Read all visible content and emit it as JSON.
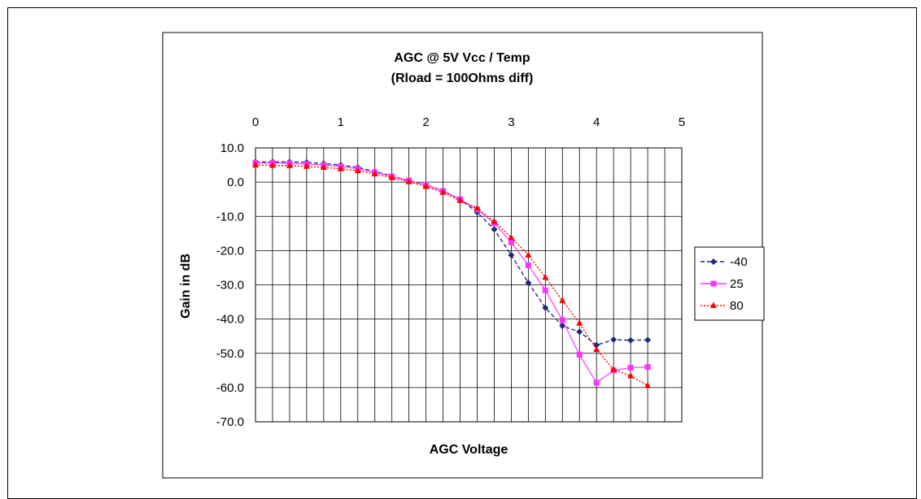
{
  "chart_data": {
    "type": "line",
    "title": "AGC @ 5V Vcc / Temp",
    "subtitle": "(Rload = 100Ohms diff)",
    "xlabel": "AGC Voltage",
    "ylabel": "Gain in dB",
    "xlim": [
      0,
      5
    ],
    "ylim": [
      -70,
      10
    ],
    "x_axis_position": "top",
    "x_ticks": [
      "0",
      "1",
      "2",
      "3",
      "4",
      "5"
    ],
    "y_ticks": [
      "10.0",
      "0.0",
      "-10.0",
      "-20.0",
      "-30.0",
      "-40.0",
      "-50.0",
      "-60.0",
      "-70.0"
    ],
    "grid": true,
    "legend_position": "right",
    "x": [
      0,
      0.2,
      0.4,
      0.6,
      0.8,
      1.0,
      1.2,
      1.4,
      1.6,
      1.8,
      2.0,
      2.2,
      2.4,
      2.6,
      2.8,
      3.0,
      3.2,
      3.4,
      3.6,
      3.8,
      4.0,
      4.2,
      4.4,
      4.6
    ],
    "series": [
      {
        "name": "-40",
        "color": "#1f2a7a",
        "marker": "diamond",
        "line_style": "dashed",
        "values": [
          5.9,
          5.9,
          5.9,
          5.8,
          5.4,
          5.0,
          4.3,
          3.1,
          1.8,
          0.4,
          -0.8,
          -2.5,
          -5.0,
          -8.8,
          -13.8,
          -21.3,
          -29.4,
          -36.7,
          -42.0,
          -43.7,
          -47.6,
          -46.0,
          -46.2,
          -46.1
        ]
      },
      {
        "name": "25",
        "color": "#ff33ff",
        "marker": "square",
        "line_style": "solid",
        "values": [
          5.6,
          5.6,
          5.5,
          5.3,
          5.0,
          4.6,
          3.9,
          2.9,
          1.7,
          0.5,
          -0.8,
          -2.6,
          -5.0,
          -8.0,
          -12.0,
          -17.6,
          -24.3,
          -31.6,
          -40.3,
          -50.4,
          -58.6,
          -55.0,
          -54.2,
          -54.0
        ]
      },
      {
        "name": "80",
        "color": "#ff0000",
        "marker": "triangle",
        "line_style": "dotted",
        "values": [
          5.0,
          4.9,
          4.8,
          4.6,
          4.3,
          3.9,
          3.3,
          2.4,
          1.3,
          0.1,
          -1.3,
          -3.0,
          -5.4,
          -7.6,
          -11.5,
          -16.2,
          -21.3,
          -27.8,
          -34.6,
          -41.2,
          -48.9,
          -54.7,
          -56.6,
          -59.4
        ]
      }
    ]
  }
}
